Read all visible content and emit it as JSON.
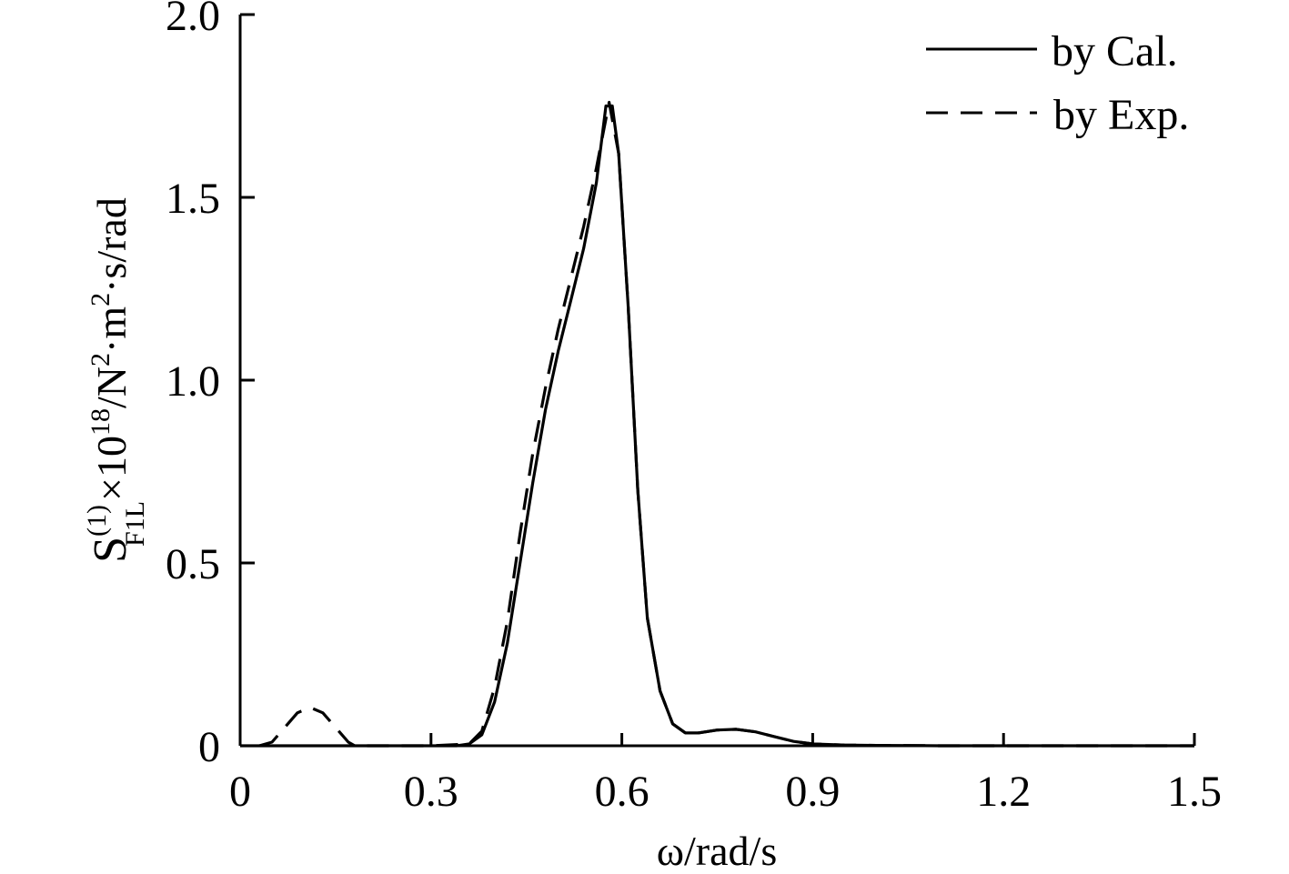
{
  "chart_data": {
    "type": "line",
    "xlabel": "ω/rad/s",
    "ylabel": {
      "base": "S",
      "superscript": "(1)",
      "subscript": "F1L",
      "rest": "×10",
      "exponent": "18",
      "unit_prefix": "/N",
      "unit_exp1": "2",
      "unit_mid": "·m",
      "unit_exp2": "2",
      "unit_suffix": "·s/rad"
    },
    "xlim": [
      0,
      1.5
    ],
    "ylim": [
      0,
      2.0
    ],
    "x_ticks": [
      0,
      0.3,
      0.6,
      0.9,
      1.2,
      1.5
    ],
    "x_tick_labels": [
      "0",
      "0.3",
      "0.6",
      "0.9",
      "1.2",
      "1.5"
    ],
    "y_ticks": [
      0,
      0.5,
      1.0,
      1.5,
      2.0
    ],
    "y_tick_labels": [
      "0",
      "0.5",
      "1.0",
      "1.5",
      "2.0"
    ],
    "grid": false,
    "legend_position": "top-right",
    "series": [
      {
        "name": "by Cal.",
        "style": "solid",
        "color": "#000000",
        "points": [
          [
            0.0,
            0.0
          ],
          [
            0.3,
            0.0
          ],
          [
            0.34,
            0.0
          ],
          [
            0.36,
            0.005
          ],
          [
            0.38,
            0.03
          ],
          [
            0.4,
            0.12
          ],
          [
            0.42,
            0.28
          ],
          [
            0.44,
            0.5
          ],
          [
            0.46,
            0.72
          ],
          [
            0.48,
            0.92
          ],
          [
            0.5,
            1.08
          ],
          [
            0.52,
            1.22
          ],
          [
            0.54,
            1.36
          ],
          [
            0.56,
            1.54
          ],
          [
            0.575,
            1.75
          ],
          [
            0.585,
            1.75
          ],
          [
            0.595,
            1.62
          ],
          [
            0.61,
            1.2
          ],
          [
            0.625,
            0.7
          ],
          [
            0.64,
            0.35
          ],
          [
            0.66,
            0.15
          ],
          [
            0.68,
            0.06
          ],
          [
            0.7,
            0.035
          ],
          [
            0.72,
            0.035
          ],
          [
            0.75,
            0.043
          ],
          [
            0.78,
            0.045
          ],
          [
            0.81,
            0.038
          ],
          [
            0.84,
            0.025
          ],
          [
            0.87,
            0.012
          ],
          [
            0.9,
            0.005
          ],
          [
            0.95,
            0.002
          ],
          [
            1.0,
            0.001
          ],
          [
            1.1,
            0.0
          ],
          [
            1.2,
            0.0
          ],
          [
            1.3,
            0.0
          ],
          [
            1.5,
            0.0
          ]
        ]
      },
      {
        "name": "by Exp.",
        "style": "dashed",
        "color": "#000000",
        "points": [
          [
            0.03,
            0.0
          ],
          [
            0.05,
            0.01
          ],
          [
            0.07,
            0.05
          ],
          [
            0.09,
            0.09
          ],
          [
            0.11,
            0.105
          ],
          [
            0.13,
            0.09
          ],
          [
            0.15,
            0.05
          ],
          [
            0.17,
            0.01
          ],
          [
            0.18,
            0.0
          ],
          [
            0.3,
            0.0
          ],
          [
            0.36,
            0.005
          ],
          [
            0.38,
            0.04
          ],
          [
            0.4,
            0.16
          ],
          [
            0.42,
            0.34
          ],
          [
            0.44,
            0.58
          ],
          [
            0.46,
            0.8
          ],
          [
            0.48,
            0.98
          ],
          [
            0.5,
            1.14
          ],
          [
            0.52,
            1.28
          ],
          [
            0.54,
            1.42
          ],
          [
            0.56,
            1.58
          ],
          [
            0.58,
            1.76
          ],
          [
            0.595,
            1.62
          ],
          [
            0.61,
            1.2
          ],
          [
            0.625,
            0.7
          ],
          [
            0.64,
            0.35
          ],
          [
            0.66,
            0.15
          ],
          [
            0.68,
            0.06
          ],
          [
            0.7,
            0.035
          ],
          [
            0.72,
            0.035
          ],
          [
            0.75,
            0.043
          ],
          [
            0.78,
            0.045
          ],
          [
            0.81,
            0.038
          ],
          [
            0.84,
            0.025
          ],
          [
            0.87,
            0.012
          ],
          [
            0.9,
            0.005
          ],
          [
            0.95,
            0.002
          ],
          [
            1.0,
            0.001
          ],
          [
            1.1,
            0.0
          ],
          [
            1.2,
            0.0
          ],
          [
            1.3,
            0.0
          ],
          [
            1.5,
            0.0
          ]
        ]
      }
    ]
  }
}
